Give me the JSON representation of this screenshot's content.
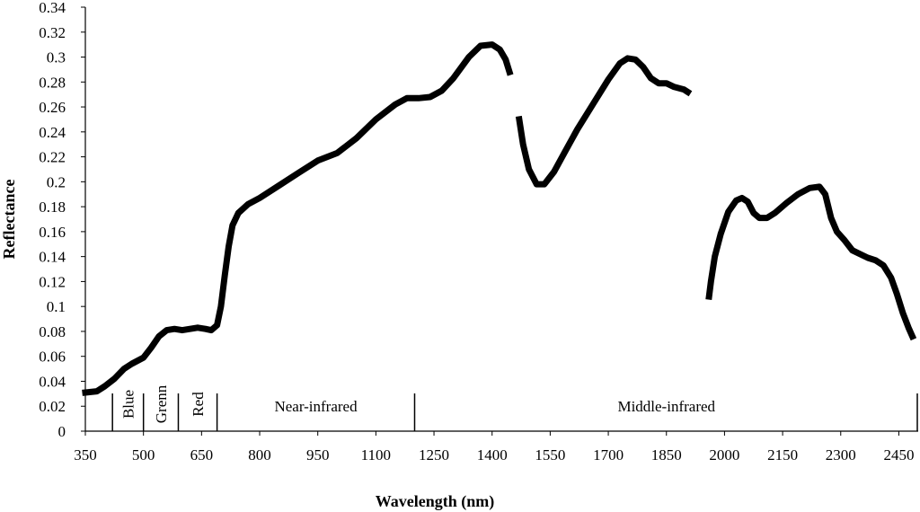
{
  "chart_data": {
    "type": "line",
    "title": "",
    "xlabel": "Wavelength  (nm)",
    "ylabel": "Reflectance",
    "xlim": [
      350,
      2500
    ],
    "ylim": [
      0,
      0.34
    ],
    "x_ticks": [
      350,
      500,
      650,
      800,
      950,
      1100,
      1250,
      1400,
      1550,
      1700,
      1850,
      2000,
      2150,
      2300,
      2450
    ],
    "x_tick_labels": [
      "350",
      "500",
      "650",
      "800",
      "950",
      "1100",
      "1250",
      "1400",
      "1550",
      "1700",
      "1850",
      "2000",
      "2150",
      "2300",
      "2450"
    ],
    "y_ticks": [
      0,
      0.02,
      0.04,
      0.06,
      0.08,
      0.1,
      0.12,
      0.14,
      0.16,
      0.18,
      0.2,
      0.22,
      0.24,
      0.26,
      0.28,
      0.3,
      0.32,
      0.34
    ],
    "y_tick_labels": [
      "0",
      "0.02",
      "0.04",
      "0.06",
      "0.08",
      "0.1",
      "0.12",
      "0.14",
      "0.16",
      "0.18",
      "0.2",
      "0.22",
      "0.24",
      "0.26",
      "0.28",
      "0.3",
      "0.32",
      "0.34"
    ],
    "grid": false,
    "legend": "none",
    "bands": [
      {
        "label": "Blue",
        "from": 420,
        "to": 500,
        "vertical": true
      },
      {
        "label": "Grenn",
        "from": 500,
        "to": 590,
        "vertical": true
      },
      {
        "label": "Red",
        "from": 590,
        "to": 690,
        "vertical": true
      },
      {
        "label": "Near-infrared",
        "from": 690,
        "to": 1200,
        "vertical": false
      },
      {
        "label": "Middle-infrared",
        "from": 1200,
        "to": 2500,
        "vertical": false
      }
    ],
    "band_dividers": [
      420,
      500,
      590,
      690,
      1200,
      2500
    ],
    "series": [
      {
        "segments": [
          [
            [
              350,
              0.031
            ],
            [
              380,
              0.032
            ],
            [
              400,
              0.036
            ],
            [
              425,
              0.042
            ],
            [
              450,
              0.05
            ],
            [
              470,
              0.054
            ],
            [
              500,
              0.059
            ],
            [
              520,
              0.067
            ],
            [
              540,
              0.076
            ],
            [
              560,
              0.081
            ],
            [
              580,
              0.082
            ],
            [
              600,
              0.081
            ],
            [
              620,
              0.082
            ],
            [
              640,
              0.083
            ],
            [
              660,
              0.082
            ],
            [
              675,
              0.081
            ],
            [
              690,
              0.085
            ],
            [
              700,
              0.1
            ],
            [
              710,
              0.125
            ],
            [
              720,
              0.148
            ],
            [
              730,
              0.165
            ],
            [
              745,
              0.175
            ],
            [
              770,
              0.182
            ],
            [
              800,
              0.187
            ],
            [
              850,
              0.197
            ],
            [
              900,
              0.207
            ],
            [
              950,
              0.217
            ],
            [
              1000,
              0.223
            ],
            [
              1050,
              0.235
            ],
            [
              1100,
              0.25
            ],
            [
              1150,
              0.262
            ],
            [
              1180,
              0.267
            ],
            [
              1210,
              0.267
            ],
            [
              1240,
              0.268
            ],
            [
              1270,
              0.273
            ],
            [
              1300,
              0.283
            ],
            [
              1340,
              0.3
            ],
            [
              1370,
              0.309
            ],
            [
              1400,
              0.31
            ],
            [
              1420,
              0.306
            ],
            [
              1435,
              0.298
            ],
            [
              1445,
              0.288
            ]
          ],
          [
            [
              1470,
              0.25
            ],
            [
              1480,
              0.23
            ],
            [
              1495,
              0.21
            ],
            [
              1515,
              0.198
            ],
            [
              1535,
              0.198
            ],
            [
              1560,
              0.208
            ],
            [
              1590,
              0.225
            ],
            [
              1620,
              0.242
            ],
            [
              1660,
              0.262
            ],
            [
              1700,
              0.282
            ],
            [
              1730,
              0.295
            ],
            [
              1750,
              0.299
            ],
            [
              1770,
              0.298
            ],
            [
              1790,
              0.292
            ],
            [
              1810,
              0.283
            ],
            [
              1830,
              0.279
            ],
            [
              1850,
              0.279
            ],
            [
              1870,
              0.276
            ],
            [
              1895,
              0.274
            ],
            [
              1905,
              0.272
            ]
          ],
          [
            [
              1960,
              0.108
            ],
            [
              1965,
              0.12
            ],
            [
              1975,
              0.14
            ],
            [
              1990,
              0.158
            ],
            [
              2010,
              0.176
            ],
            [
              2030,
              0.185
            ],
            [
              2045,
              0.187
            ],
            [
              2060,
              0.184
            ],
            [
              2075,
              0.175
            ],
            [
              2090,
              0.171
            ],
            [
              2110,
              0.171
            ],
            [
              2130,
              0.175
            ],
            [
              2160,
              0.183
            ],
            [
              2190,
              0.19
            ],
            [
              2220,
              0.195
            ],
            [
              2245,
              0.196
            ],
            [
              2260,
              0.19
            ],
            [
              2275,
              0.171
            ],
            [
              2290,
              0.16
            ],
            [
              2310,
              0.153
            ],
            [
              2330,
              0.145
            ],
            [
              2350,
              0.142
            ],
            [
              2370,
              0.139
            ],
            [
              2390,
              0.137
            ],
            [
              2410,
              0.133
            ],
            [
              2430,
              0.123
            ],
            [
              2445,
              0.11
            ],
            [
              2460,
              0.095
            ],
            [
              2475,
              0.083
            ],
            [
              2485,
              0.076
            ]
          ]
        ]
      }
    ]
  }
}
